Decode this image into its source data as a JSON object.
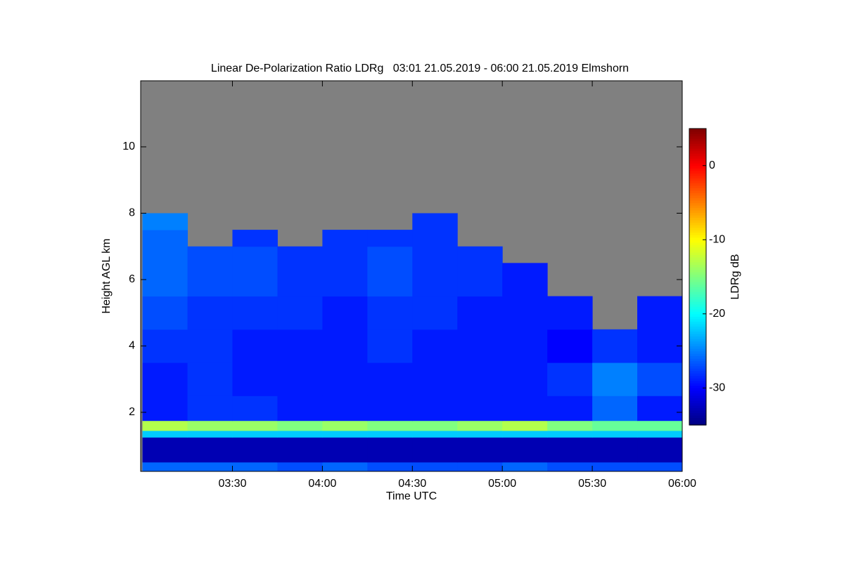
{
  "chart_data": {
    "type": "heatmap",
    "title": "Linear De-Polarization Ratio LDRg   03:01 21.05.2019 - 06:00 21.05.2019 Elmshorn",
    "x_label": "Time UTC",
    "y_label": "Height AGL km",
    "colorbar_label": "LDRg dB",
    "colormap": "jet",
    "nodata_color": "#808080",
    "xlim": [
      2.99,
      6.0
    ],
    "xticks": [
      {
        "value": 3.5,
        "label": "03:30"
      },
      {
        "value": 4.0,
        "label": "04:00"
      },
      {
        "value": 4.5,
        "label": "04:30"
      },
      {
        "value": 5.0,
        "label": "05:00"
      },
      {
        "value": 5.5,
        "label": "05:30"
      },
      {
        "value": 6.0,
        "label": "06:00"
      }
    ],
    "ylim": [
      0.22,
      11.99
    ],
    "yticks": [
      2,
      4,
      6,
      8,
      10
    ],
    "clim": [
      -35,
      5
    ],
    "cticks": [
      0,
      -10,
      -20,
      -30
    ],
    "x_edges": [
      3.0,
      3.25,
      3.5,
      3.75,
      4.0,
      4.25,
      4.5,
      4.75,
      5.0,
      5.25,
      5.5,
      5.75,
      6.0
    ],
    "y_edges": [
      0.22,
      0.5,
      1.25,
      1.45,
      1.75,
      2.5,
      3.5,
      4.5,
      5.5,
      6.5,
      7.0,
      7.5,
      8.0,
      11.99
    ],
    "z": [
      [
        -26,
        -26,
        -26,
        -27,
        -26,
        -27,
        -27,
        -27,
        -26,
        -27,
        -27,
        -27
      ],
      [
        -33,
        -33,
        -33,
        -33,
        -33,
        -33,
        -33,
        -33,
        -33,
        -33,
        -33,
        -33
      ],
      [
        -22,
        -22,
        -22,
        -22,
        -22,
        -22,
        -22,
        -22,
        -22,
        -22,
        -22,
        -22
      ],
      [
        -13,
        -14,
        -14,
        -15,
        -14,
        -15,
        -15,
        -14,
        -13,
        -15,
        -16,
        -16
      ],
      [
        -29,
        -28,
        -28,
        -29,
        -29,
        -29,
        -29,
        -29,
        -29,
        -29,
        -26,
        -29
      ],
      [
        -29,
        -28,
        -29,
        -29,
        -29,
        -29,
        -29,
        -29,
        -29,
        -28,
        -25,
        -27
      ],
      [
        -28,
        -28,
        -29,
        -29,
        -29,
        -28,
        -29,
        -29,
        -29,
        -30,
        -28,
        -29
      ],
      [
        -27,
        -28,
        -28,
        -28,
        -29,
        -28,
        -28,
        -29,
        -29,
        -29,
        null,
        -29
      ],
      [
        -26,
        -27,
        -27,
        -28,
        -28,
        -27,
        -28,
        -28,
        -29,
        null,
        null,
        null
      ],
      [
        -26,
        -27,
        -27,
        -28,
        -28,
        -27,
        -28,
        -28,
        null,
        null,
        null,
        null
      ],
      [
        -26,
        null,
        -28,
        null,
        -28,
        -28,
        -28,
        null,
        null,
        null,
        null,
        null
      ],
      [
        -25,
        null,
        null,
        null,
        null,
        null,
        -28,
        null,
        null,
        null,
        null,
        null
      ],
      [
        null,
        null,
        null,
        null,
        null,
        null,
        null,
        null,
        null,
        null,
        null,
        null
      ]
    ]
  }
}
